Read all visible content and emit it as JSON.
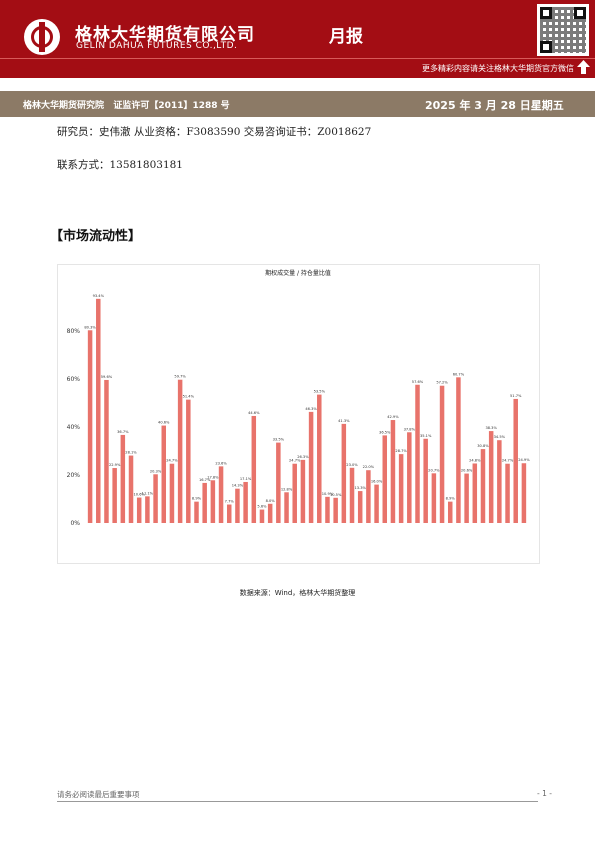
{
  "header": {
    "company_cn": "格林大华期货有限公司",
    "company_en": "GELIN DAHUA FUTURES CO.,LTD.",
    "report_type": "月报",
    "follow_text": "更多精彩内容请关注格林大华期货官方微信",
    "brand_color": "#a30d14",
    "subbar_color": "#8c7a66"
  },
  "subbar": {
    "institute": "格林大华期货研究院",
    "license": "证监许可【2011】1288 号",
    "date": "2025 年 3 月 28 日星期五"
  },
  "contact": {
    "analyst_line": "研究员：史伟澈    从业资格：F3083590    交易咨询证书：Z0018627",
    "phone_line": "联系方式：13581803181"
  },
  "section": {
    "title": "【市场流动性】"
  },
  "chart_data": {
    "type": "bar",
    "title": "期权成交量 / 持仓量比值",
    "bar_color": "#e8736b",
    "ylim": [
      0,
      100
    ],
    "yticks": [
      "0%",
      "20%",
      "40%",
      "60%",
      "80%"
    ],
    "ytick_values": [
      0,
      20,
      40,
      60,
      80
    ],
    "grid": false,
    "values": [
      80.3,
      93.4,
      59.6,
      22.9,
      36.7,
      28.1,
      10.6,
      11.1,
      20.3,
      40.6,
      24.7,
      59.7,
      51.4,
      8.9,
      16.7,
      17.8,
      23.6,
      7.7,
      14.3,
      17.1,
      44.6,
      5.6,
      8.0,
      33.5,
      12.8,
      24.7,
      26.3,
      46.3,
      53.5,
      10.9,
      10.5,
      41.3,
      23.0,
      13.3,
      22.0,
      16.0,
      36.5,
      42.9,
      28.7,
      37.8,
      57.6,
      35.1,
      20.7,
      57.2,
      8.9,
      60.7,
      20.6,
      24.8,
      30.8,
      38.3,
      34.5,
      24.7,
      51.7,
      24.9
    ],
    "labels": [
      "80.3%",
      "93.4%",
      "59.6%",
      "22.9%",
      "36.7%",
      "28.1%",
      "10.6%",
      "11.1%",
      "20.3%",
      "40.6%",
      "24.7%",
      "59.7%",
      "51.4%",
      "8.9%",
      "16.7%",
      "17.8%",
      "23.6%",
      "7.7%",
      "14.3%",
      "17.1%",
      "44.6%",
      "5.6%",
      "8.0%",
      "33.5%",
      "12.8%",
      "24.7%",
      "26.3%",
      "46.3%",
      "53.5%",
      "10.9%",
      "10.5%",
      "41.3%",
      "23.0%",
      "13.3%",
      "22.0%",
      "16.0%",
      "36.5%",
      "42.9%",
      "28.7%",
      "37.8%",
      "57.6%",
      "35.1%",
      "20.7%",
      "57.2%",
      "8.9%",
      "60.7%",
      "20.6%",
      "24.8%",
      "30.8%",
      "38.3%",
      "34.5%",
      "24.7%",
      "51.7%",
      "24.9%"
    ]
  },
  "source": {
    "text": "数据来源：Wind，格林大华期货整理"
  },
  "footer": {
    "disclaimer": "请务必阅读最后重要事项",
    "page": "- 1 -"
  }
}
